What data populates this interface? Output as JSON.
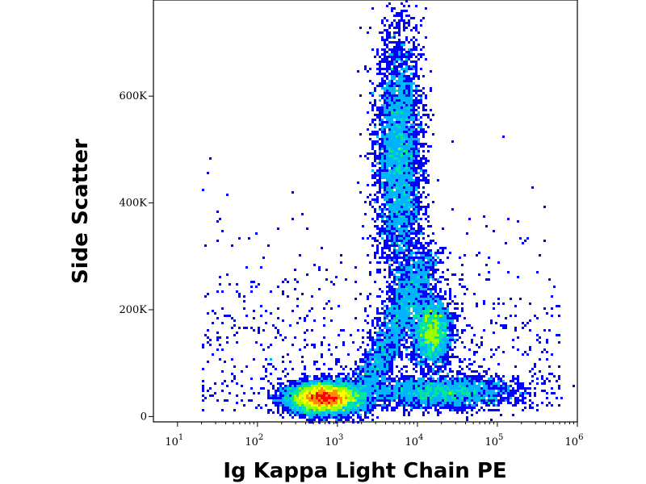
{
  "chart_data": {
    "type": "scatter",
    "subtype": "flow cytometry density dot plot (pseudocolor)",
    "title": "",
    "xlabel": "Ig Kappa Light Chain PE",
    "ylabel": "Side Scatter",
    "x_scale": "log",
    "xlim": [
      5,
      1000000
    ],
    "ylim": [
      -10000,
      780000
    ],
    "x_ticks": [
      {
        "value": 10,
        "base": "10",
        "exp": "1"
      },
      {
        "value": 100,
        "base": "10",
        "exp": "2"
      },
      {
        "value": 1000,
        "base": "10",
        "exp": "3"
      },
      {
        "value": 10000,
        "base": "10",
        "exp": "4"
      },
      {
        "value": 100000,
        "base": "10",
        "exp": "5"
      },
      {
        "value": 1000000,
        "base": "10",
        "exp": "6"
      }
    ],
    "y_ticks": [
      {
        "value": 0,
        "label": "0"
      },
      {
        "value": 200000,
        "label": "200K"
      },
      {
        "value": 400000,
        "label": "400K"
      },
      {
        "value": 600000,
        "label": "600K"
      }
    ],
    "color_scale": [
      "#0000ff",
      "#00b4ff",
      "#00e6a0",
      "#9bff00",
      "#ffff00",
      "#ff8c00",
      "#ff0000"
    ],
    "populations": [
      {
        "name_visible": false,
        "x_center": 700,
        "y_center": 35000,
        "x_spread_log10": 0.22,
        "y_spread": 14000,
        "relative_density": 1.0
      },
      {
        "name_visible": false,
        "x_center": 6000,
        "y_center": 480000,
        "x_spread_log10": 0.14,
        "y_spread": 120000,
        "relative_density": 0.55
      },
      {
        "name_visible": false,
        "x_center": 15000,
        "y_center": 160000,
        "x_spread_log10": 0.12,
        "y_spread": 30000,
        "relative_density": 0.35
      },
      {
        "name_visible": false,
        "x_center": 20000,
        "y_center": 45000,
        "x_spread_log10": 0.45,
        "y_spread": 15000,
        "relative_density": 0.3
      }
    ]
  }
}
